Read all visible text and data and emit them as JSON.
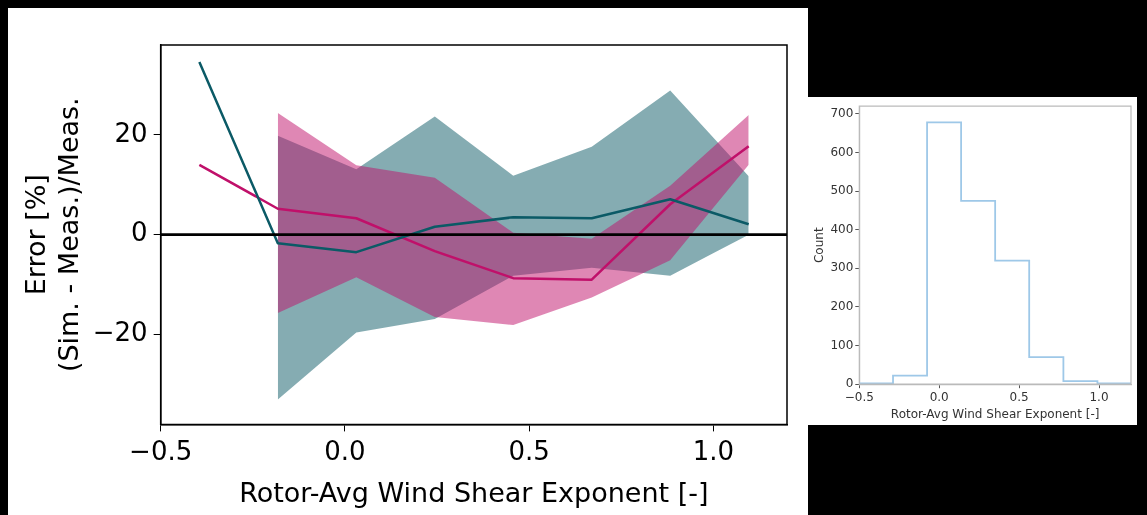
{
  "chart_data": [
    {
      "type": "line",
      "xlabel": "Rotor-Avg Wind Shear Exponent [-]",
      "ylabel": "Error [%]\n(Sim. - Meas.)/Meas.",
      "xlim": [
        -0.5,
        1.2
      ],
      "ylim": [
        -38,
        38
      ],
      "xticks": [
        {
          "value": -0.5,
          "label": "−0.5"
        },
        {
          "value": 0,
          "label": "0.0"
        },
        {
          "value": 0.5,
          "label": "0.5"
        },
        {
          "value": 1,
          "label": "1.0"
        }
      ],
      "yticks": [
        {
          "value": -20,
          "label": "−20"
        },
        0,
        20
      ],
      "grid": false,
      "legend": false,
      "marker": "none",
      "line_style": "solid",
      "x": [
        -0.395,
        -0.182,
        0.031,
        0.244,
        0.457,
        0.67,
        0.883,
        1.096
      ],
      "series": [
        {
          "color": "#0b5a66",
          "values": [
            34.6,
            -1.7,
            -3.5,
            1.6,
            3.5,
            3.3,
            7.1,
            2.1
          ],
          "lower": [
            null,
            -33,
            -19.6,
            -16.9,
            -8.2,
            -6.6,
            -8.2,
            0
          ],
          "upper": [
            null,
            19.8,
            13.1,
            23.7,
            11.8,
            17.6,
            28.9,
            11.7
          ]
        },
        {
          "color": "#c0106a",
          "values": [
            14,
            5.2,
            3.3,
            -3.3,
            -8.7,
            -9,
            6.1,
            17.7
          ],
          "lower": [
            null,
            -15.7,
            -8.5,
            -16.5,
            -18.1,
            -12.6,
            -5.1,
            14
          ],
          "upper": [
            null,
            24.4,
            13.9,
            11.4,
            0.4,
            -0.8,
            9.8,
            24
          ]
        }
      ],
      "ref_lines": [
        {
          "axis": "y",
          "value": 0,
          "color": "#000000"
        }
      ]
    },
    {
      "type": "histogram",
      "xlabel": "Rotor-Avg Wind Shear Exponent [-]",
      "ylabel": "Count",
      "color": "#9ec8e8",
      "xlim": [
        -0.5,
        1.2
      ],
      "ylim": [
        0,
        720
      ],
      "xticks": [
        {
          "value": -0.5,
          "label": "−0.5"
        },
        {
          "value": 0,
          "label": "0.0"
        },
        {
          "value": 0.5,
          "label": "0.5"
        },
        {
          "value": 1,
          "label": "1.0"
        }
      ],
      "yticks": [
        0,
        100,
        200,
        300,
        400,
        500,
        600,
        700
      ],
      "grid": false,
      "legend": false,
      "bins": [
        -0.502,
        -0.289,
        -0.076,
        0.137,
        0.35,
        0.563,
        0.777,
        0.99,
        1.203
      ],
      "values": [
        2,
        22,
        678,
        475,
        320,
        70,
        8,
        2
      ]
    }
  ]
}
